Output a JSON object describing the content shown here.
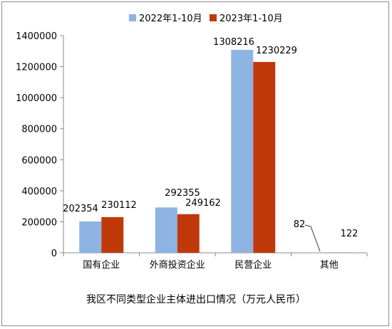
{
  "chart_data": {
    "type": "bar",
    "title": "我区不同类型企业主体进出口情况（万元人民币）",
    "xlabel": "",
    "ylabel": "",
    "categories": [
      "国有企业",
      "外商投资企业",
      "民营企业",
      "其他"
    ],
    "series": [
      {
        "name": "2022年1-10月",
        "color": "#8EB4E3",
        "values": [
          202354,
          292355,
          1308216,
          82
        ]
      },
      {
        "name": "2023年1-10月",
        "color": "#C0390B",
        "values": [
          230112,
          249162,
          1230229,
          122
        ]
      }
    ],
    "data_labels": [
      [
        "202354",
        "292355",
        "1308216",
        "82"
      ],
      [
        "230112",
        "249162",
        "1230229",
        "122"
      ]
    ],
    "ylim": [
      0,
      1400000
    ],
    "yticks": [
      0,
      200000,
      400000,
      600000,
      800000,
      1000000,
      1200000,
      1400000
    ],
    "grid": false,
    "legend_position": "top"
  }
}
